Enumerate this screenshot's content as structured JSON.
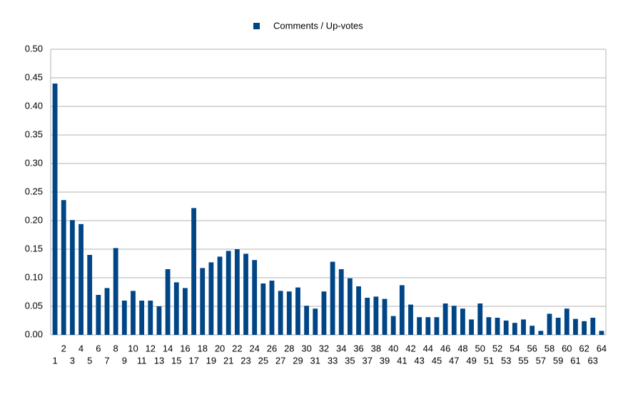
{
  "chart_data": {
    "type": "bar",
    "categories": [
      "1",
      "2",
      "3",
      "4",
      "5",
      "6",
      "7",
      "8",
      "9",
      "10",
      "11",
      "12",
      "13",
      "14",
      "15",
      "16",
      "17",
      "18",
      "19",
      "20",
      "21",
      "22",
      "23",
      "24",
      "25",
      "26",
      "27",
      "28",
      "29",
      "30",
      "31",
      "32",
      "33",
      "34",
      "35",
      "36",
      "37",
      "38",
      "39",
      "40",
      "41",
      "42",
      "43",
      "44",
      "45",
      "46",
      "47",
      "48",
      "49",
      "50",
      "51",
      "52",
      "53",
      "54",
      "55",
      "56",
      "57",
      "58",
      "59",
      "60",
      "61",
      "62",
      "63",
      "64"
    ],
    "series": [
      {
        "name": "Comments / Up-votes",
        "color": "#004586",
        "values": [
          0.44,
          0.236,
          0.201,
          0.194,
          0.14,
          0.07,
          0.082,
          0.152,
          0.06,
          0.077,
          0.06,
          0.06,
          0.05,
          0.115,
          0.092,
          0.082,
          0.222,
          0.117,
          0.127,
          0.137,
          0.147,
          0.15,
          0.142,
          0.131,
          0.09,
          0.095,
          0.077,
          0.076,
          0.083,
          0.051,
          0.046,
          0.076,
          0.128,
          0.115,
          0.099,
          0.085,
          0.065,
          0.067,
          0.063,
          0.033,
          0.087,
          0.053,
          0.031,
          0.031,
          0.031,
          0.055,
          0.051,
          0.046,
          0.027,
          0.055,
          0.031,
          0.03,
          0.025,
          0.021,
          0.027,
          0.016,
          0.007,
          0.037,
          0.03,
          0.046,
          0.028,
          0.024,
          0.03,
          0.007
        ]
      }
    ],
    "ylim": [
      0,
      0.5
    ],
    "yticks": [
      {
        "value": 0,
        "label": "0.00"
      },
      {
        "value": 0.05,
        "label": "0.05"
      },
      {
        "value": 0.1,
        "label": "0.10"
      },
      {
        "value": 0.15,
        "label": "0.15"
      },
      {
        "value": 0.2,
        "label": "0.20"
      },
      {
        "value": 0.25,
        "label": "0.25"
      },
      {
        "value": 0.3,
        "label": "0.30"
      },
      {
        "value": 0.35,
        "label": "0.35"
      },
      {
        "value": 0.4,
        "label": "0.40"
      },
      {
        "value": 0.45,
        "label": "0.45"
      },
      {
        "value": 0.5,
        "label": "0.50"
      }
    ],
    "grid": true,
    "legend": "top"
  }
}
